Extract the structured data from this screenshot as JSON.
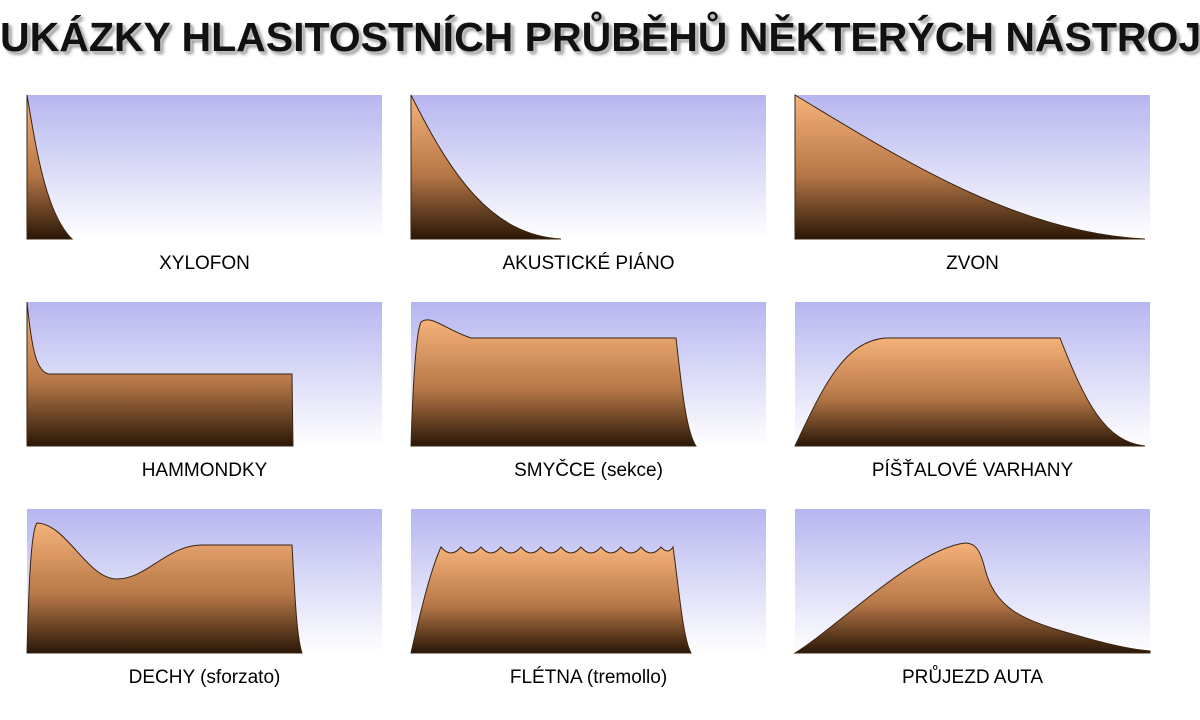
{
  "title": "UKÁZKY HLASITOSTNÍCH PRŮBĚHŮ NĚKTERÝCH NÁSTROJŮ",
  "colors": {
    "sky_top": "#b6b6f0",
    "sky_bottom": "#ffffff",
    "fill_top": "#f5b27a",
    "fill_mid": "#b77848",
    "fill_bottom": "#2a1707"
  },
  "panels": [
    {
      "label": "XYLOFON"
    },
    {
      "label": "AKUSTICKÉ PIÁNO"
    },
    {
      "label": "ZVON"
    },
    {
      "label": "HAMMONDKY"
    },
    {
      "label": "SMYČCE (sekce)"
    },
    {
      "label": "PÍŠŤALOVÉ VARHANY"
    },
    {
      "label": "DECHY (sforzato)"
    },
    {
      "label": "FLÉTNA (tremollo)"
    },
    {
      "label": "PRŮJEZD AUTA"
    }
  ]
}
